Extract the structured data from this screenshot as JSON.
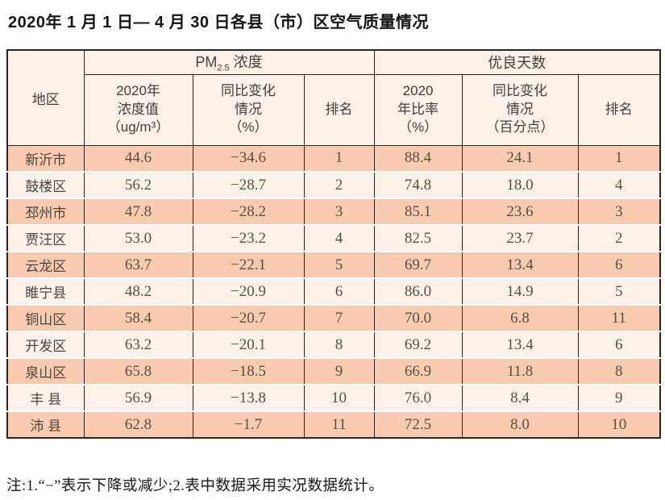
{
  "title": "2020年 1 月 1 日— 4 月 30 日各县（市）区空气质量情况",
  "table": {
    "region_header": "地区",
    "groups": {
      "pm25": {
        "prefix": "PM",
        "sub": "2.5",
        "suffix": " 浓度"
      },
      "good_days": {
        "label": "优良天数"
      }
    },
    "sub_headers": [
      "2020年\n浓度值\n（ug/m³）",
      "同比变化\n情况\n（%）",
      "排名",
      "2020\n年比率\n（%）",
      "同比变化\n情况\n（百分点）",
      "排名"
    ],
    "rows": [
      {
        "region": "新沂市",
        "values": [
          "44.6",
          "−34.6",
          "1",
          "88.4",
          "24.1",
          "1"
        ]
      },
      {
        "region": "鼓楼区",
        "values": [
          "56.2",
          "−28.7",
          "2",
          "74.8",
          "18.0",
          "4"
        ]
      },
      {
        "region": "邳州市",
        "values": [
          "47.8",
          "−28.2",
          "3",
          "85.1",
          "23.6",
          "3"
        ]
      },
      {
        "region": "贾汪区",
        "values": [
          "53.0",
          "−23.2",
          "4",
          "82.5",
          "23.7",
          "2"
        ]
      },
      {
        "region": "云龙区",
        "values": [
          "63.7",
          "−22.1",
          "5",
          "69.7",
          "13.4",
          "6"
        ]
      },
      {
        "region": "睢宁县",
        "values": [
          "48.2",
          "−20.9",
          "6",
          "86.0",
          "14.9",
          "5"
        ]
      },
      {
        "region": "铜山区",
        "values": [
          "58.4",
          "−20.7",
          "7",
          "70.0",
          "6.8",
          "11"
        ]
      },
      {
        "region": "开发区",
        "values": [
          "63.2",
          "−20.1",
          "8",
          "69.2",
          "13.4",
          "6"
        ]
      },
      {
        "region": "泉山区",
        "values": [
          "65.8",
          "−18.5",
          "9",
          "66.9",
          "11.8",
          "8"
        ]
      },
      {
        "region": "丰 县",
        "values": [
          "56.9",
          "−13.8",
          "10",
          "76.0",
          "8.4",
          "9"
        ]
      },
      {
        "region": "沛 县",
        "values": [
          "62.8",
          "−1.7",
          "11",
          "72.5",
          "8.0",
          "10"
        ]
      }
    ]
  },
  "note": "注:1.“−”表示下降或减少;2.表中数据采用实况数据统计。",
  "colors": {
    "row_odd_bg": "#f9cbae",
    "row_even_bg": "#fdf1ea",
    "header_bg": "#fbf1e8",
    "border": "#33211b",
    "row_separator": "#ffffff",
    "text": "#4e4944"
  }
}
